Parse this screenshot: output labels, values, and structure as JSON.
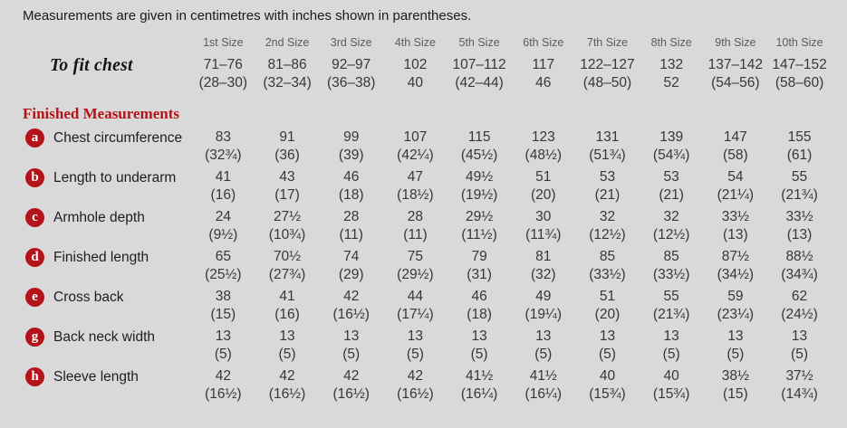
{
  "note": "Measurements are given in centimetres with inches shown in parentheses.",
  "colors": {
    "bg": "#d9d9d9",
    "red": "#b41319",
    "header_gray": "#5c5c5c",
    "text": "#373737"
  },
  "table": {
    "size_headers": [
      "1st Size",
      "2nd Size",
      "3rd Size",
      "4th Size",
      "5th Size",
      "6th Size",
      "7th Size",
      "8th Size",
      "9th Size",
      "10th Size"
    ],
    "to_fit_chest": {
      "label": "To fit chest",
      "cm": [
        "71–76",
        "81–86",
        "92–97",
        "102",
        "107–112",
        "117",
        "122–127",
        "132",
        "137–142",
        "147–152"
      ],
      "in": [
        "(28–30)",
        "(32–34)",
        "(36–38)",
        "40",
        "(42–44)",
        "46",
        "(48–50)",
        "52",
        "(54–56)",
        "(58–60)"
      ]
    },
    "section_header": "Finished Measurements",
    "rows": [
      {
        "badge": "a",
        "label": "Chest circumference",
        "cm": [
          "83",
          "91",
          "99",
          "107",
          "115",
          "123",
          "131",
          "139",
          "147",
          "155"
        ],
        "in": [
          "(32¾)",
          "(36)",
          "(39)",
          "(42¼)",
          "(45½)",
          "(48½)",
          "(51¾)",
          "(54¾)",
          "(58)",
          "(61)"
        ]
      },
      {
        "badge": "b",
        "label": "Length to underarm",
        "cm": [
          "41",
          "43",
          "46",
          "47",
          "49½",
          "51",
          "53",
          "53",
          "54",
          "55"
        ],
        "in": [
          "(16)",
          "(17)",
          "(18)",
          "(18½)",
          "(19½)",
          "(20)",
          "(21)",
          "(21)",
          "(21¼)",
          "(21¾)"
        ]
      },
      {
        "badge": "c",
        "label": "Armhole depth",
        "cm": [
          "24",
          "27½",
          "28",
          "28",
          "29½",
          "30",
          "32",
          "32",
          "33½",
          "33½"
        ],
        "in": [
          "(9½)",
          "(10¾)",
          "(11)",
          "(11)",
          "(11½)",
          "(11¾)",
          "(12½)",
          "(12½)",
          "(13)",
          "(13)"
        ]
      },
      {
        "badge": "d",
        "label": "Finished length",
        "cm": [
          "65",
          "70½",
          "74",
          "75",
          "79",
          "81",
          "85",
          "85",
          "87½",
          "88½"
        ],
        "in": [
          "(25½)",
          "(27¾)",
          "(29)",
          "(29½)",
          "(31)",
          "(32)",
          "(33½)",
          "(33½)",
          "(34½)",
          "(34¾)"
        ]
      },
      {
        "badge": "e",
        "label": "Cross back",
        "cm": [
          "38",
          "41",
          "42",
          "44",
          "46",
          "49",
          "51",
          "55",
          "59",
          "62"
        ],
        "in": [
          "(15)",
          "(16)",
          "(16½)",
          "(17¼)",
          "(18)",
          "(19¼)",
          "(20)",
          "(21¾)",
          "(23¼)",
          "(24½)"
        ]
      },
      {
        "badge": "g",
        "label": "Back neck width",
        "cm": [
          "13",
          "13",
          "13",
          "13",
          "13",
          "13",
          "13",
          "13",
          "13",
          "13"
        ],
        "in": [
          "(5)",
          "(5)",
          "(5)",
          "(5)",
          "(5)",
          "(5)",
          "(5)",
          "(5)",
          "(5)",
          "(5)"
        ]
      },
      {
        "badge": "h",
        "label": "Sleeve length",
        "cm": [
          "42",
          "42",
          "42",
          "42",
          "41½",
          "41½",
          "40",
          "40",
          "38½",
          "37½"
        ],
        "in": [
          "(16½)",
          "(16½)",
          "(16½)",
          "(16½)",
          "(16¼)",
          "(16¼)",
          "(15¾)",
          "(15¾)",
          "(15)",
          "(14¾)"
        ]
      }
    ]
  }
}
